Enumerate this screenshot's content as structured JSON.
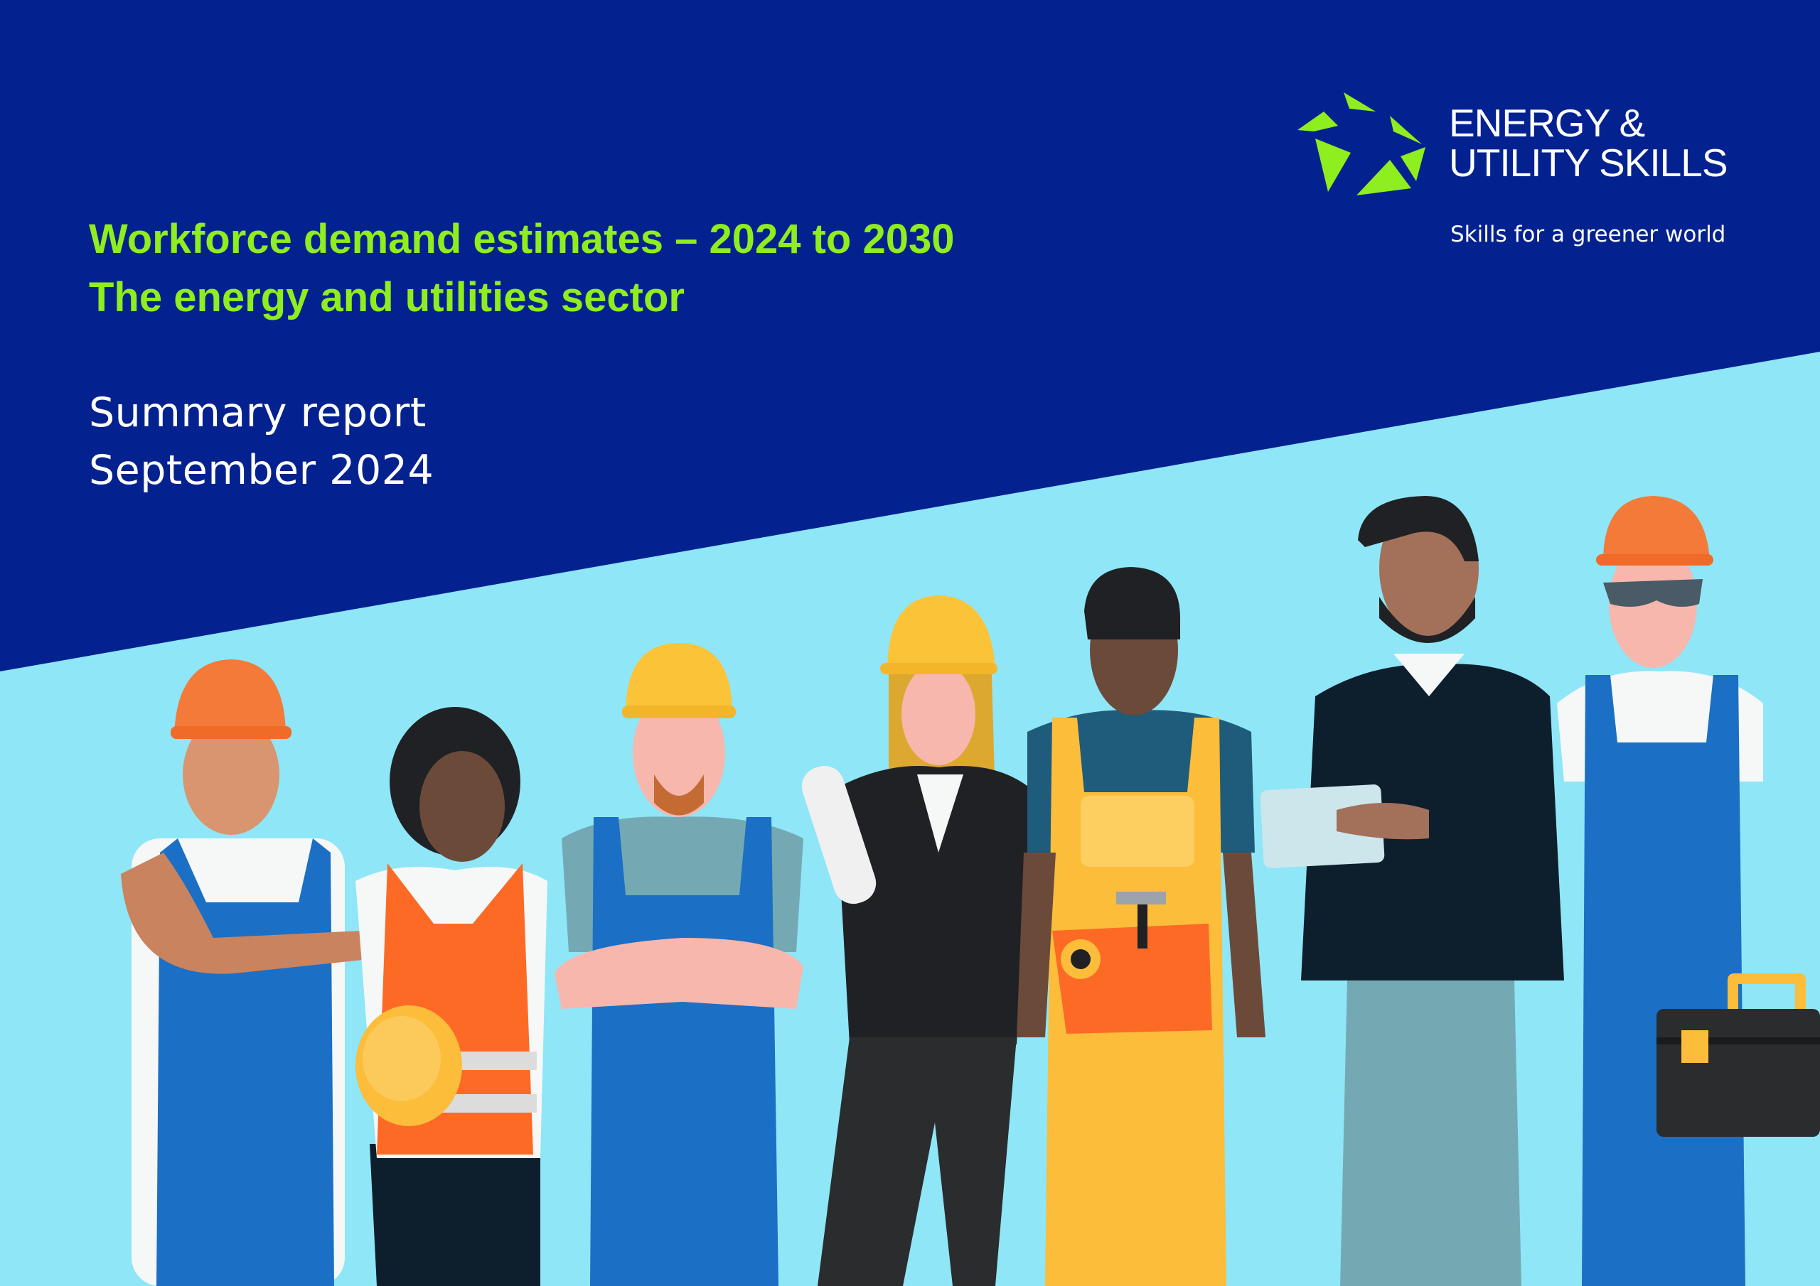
{
  "cover": {
    "title_line_1": "Workforce demand estimates – 2024 to 2030",
    "title_line_2": "The energy and utilities sector",
    "subtitle_line_1": "Summary report",
    "subtitle_line_2": "September 2024"
  },
  "brand": {
    "name_line_1": "ENERGY &",
    "name_line_2": "UTILITY SKILLS",
    "tagline": "Skills for a greener world",
    "logo_icon": "star-burst-logo-icon"
  },
  "illustration": {
    "icon": "workers-group-illustration"
  },
  "colors": {
    "navy": "#04228f",
    "light_blue": "#8fe6f7",
    "lime": "#8fee1d",
    "white": "#ffffff"
  }
}
